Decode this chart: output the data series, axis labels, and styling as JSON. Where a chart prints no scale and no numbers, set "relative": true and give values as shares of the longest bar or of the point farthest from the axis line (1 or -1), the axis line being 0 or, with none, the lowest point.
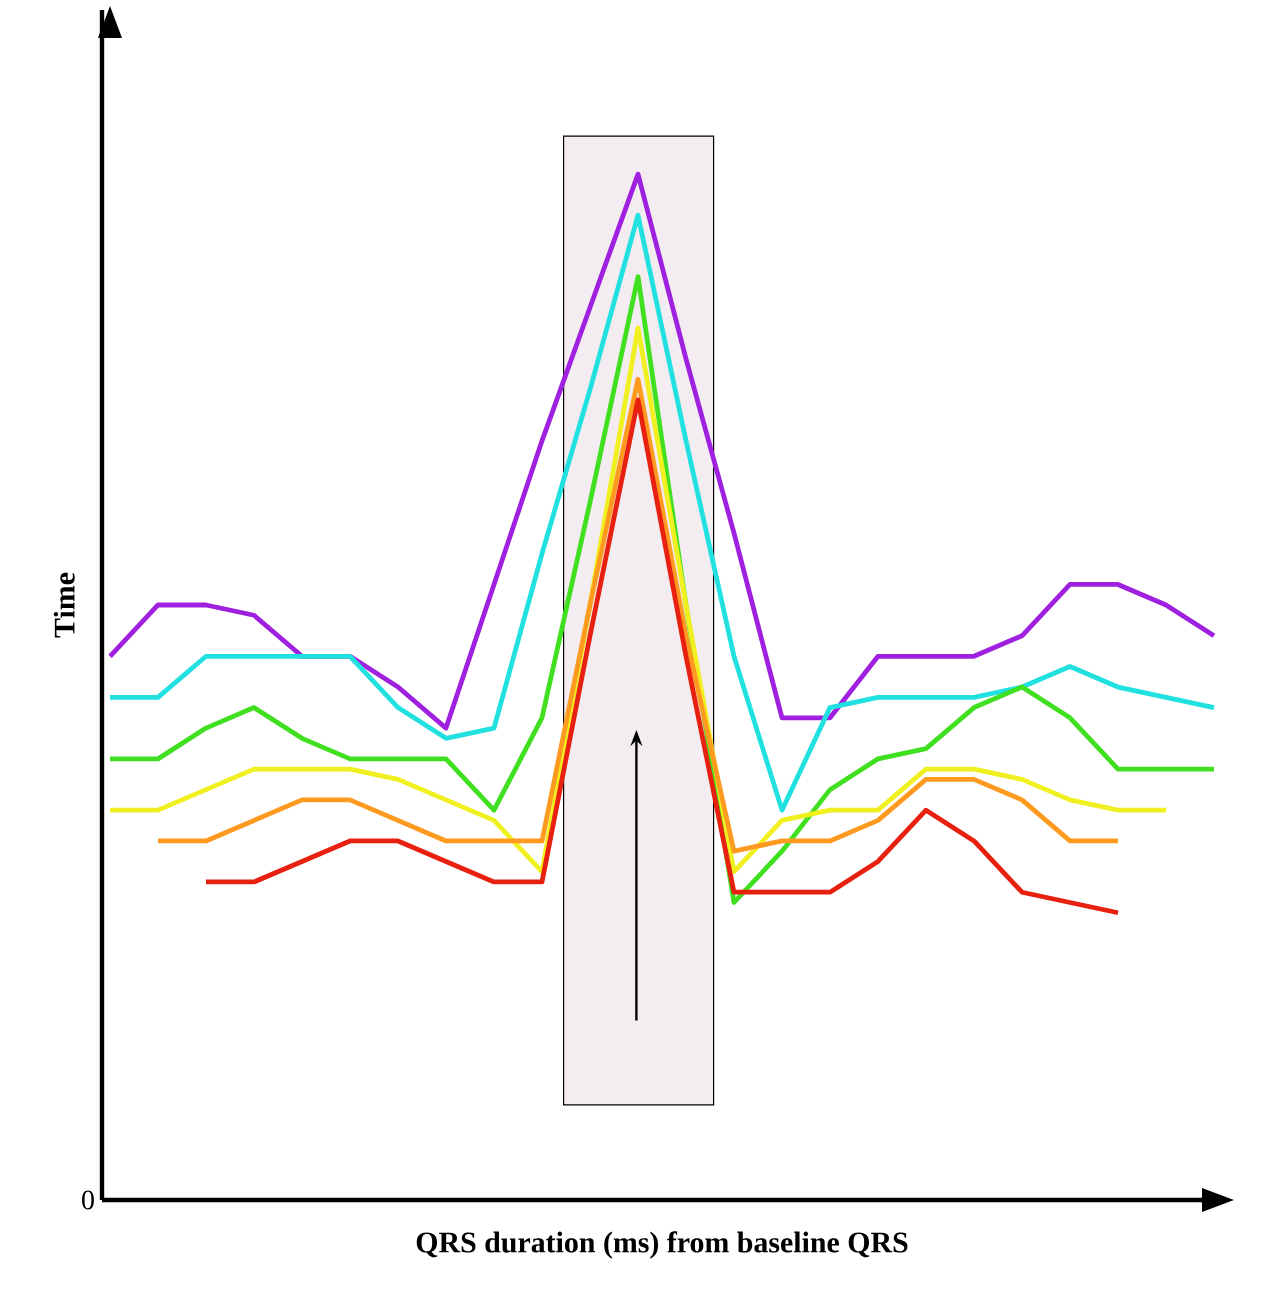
{
  "chart_data": {
    "type": "line",
    "relative": true,
    "xlabel": "QRS duration (ms) from baseline QRS",
    "ylabel": "Time",
    "annotations": [
      "0"
    ],
    "marker": "none",
    "line_style": "solid",
    "categories": [
      null,
      null,
      null,
      null,
      null,
      null,
      null,
      null,
      null,
      null,
      null,
      null,
      null,
      null,
      null,
      null,
      null,
      null,
      null,
      null,
      null,
      null,
      null,
      null
    ],
    "series": [
      {
        "color": "#a020e0",
        "values": [
          0.53,
          0.58,
          0.58,
          0.57,
          0.53,
          0.53,
          0.5,
          0.46,
          0.6,
          0.74,
          0.87,
          1.0,
          0.82,
          0.65,
          0.47,
          0.47,
          0.53,
          0.53,
          0.53,
          0.55,
          0.6,
          0.6,
          0.58,
          0.55
        ]
      },
      {
        "color": "#20e0e0",
        "values": [
          0.49,
          0.49,
          0.53,
          0.53,
          0.53,
          0.53,
          0.48,
          0.45,
          0.46,
          0.63,
          0.79,
          0.96,
          0.74,
          0.53,
          0.38,
          0.48,
          0.49,
          0.49,
          0.49,
          0.5,
          0.52,
          0.5,
          0.49,
          0.48
        ]
      },
      {
        "color": "#40e020",
        "values": [
          0.43,
          0.43,
          0.46,
          0.48,
          0.45,
          0.43,
          0.43,
          0.43,
          0.38,
          0.47,
          0.68,
          0.9,
          0.58,
          0.29,
          0.34,
          0.4,
          0.43,
          0.44,
          0.48,
          0.5,
          0.47,
          0.42,
          0.42,
          0.42
        ]
      },
      {
        "color": "#f0f020",
        "values": [
          0.38,
          0.38,
          0.4,
          0.42,
          0.42,
          0.42,
          0.41,
          0.39,
          0.37,
          0.32,
          0.58,
          0.85,
          0.58,
          0.32,
          0.37,
          0.38,
          0.38,
          0.42,
          0.42,
          0.41,
          0.39,
          0.38,
          0.38,
          null
        ]
      },
      {
        "color": "#ff9a20",
        "values": [
          null,
          0.35,
          0.35,
          0.37,
          0.39,
          0.39,
          0.37,
          0.35,
          0.35,
          0.35,
          0.58,
          0.8,
          0.55,
          0.34,
          0.35,
          0.35,
          0.37,
          0.41,
          0.41,
          0.39,
          0.35,
          0.35,
          null,
          null
        ]
      },
      {
        "color": "#e82010",
        "values": [
          null,
          null,
          0.31,
          0.31,
          0.33,
          0.35,
          0.35,
          0.33,
          0.31,
          0.31,
          0.55,
          0.78,
          0.53,
          0.3,
          0.3,
          0.3,
          0.33,
          0.38,
          0.35,
          0.3,
          0.29,
          0.28,
          null,
          null
        ]
      }
    ]
  }
}
